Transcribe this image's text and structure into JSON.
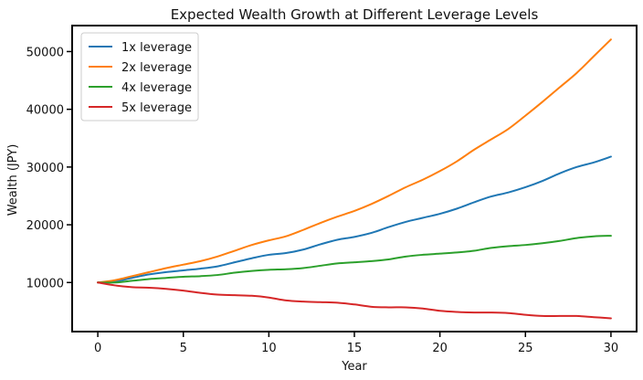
{
  "chart_data": {
    "type": "line",
    "title": "Expected Wealth Growth at Different Leverage Levels",
    "xlabel": "Year",
    "ylabel": "Wealth (JPY)",
    "xlim": [
      -1.5,
      31.5
    ],
    "ylim": [
      1500,
      54500
    ],
    "xticks": [
      0,
      5,
      10,
      15,
      20,
      25,
      30
    ],
    "yticks": [
      10000,
      20000,
      30000,
      40000,
      50000
    ],
    "grid": false,
    "legend_position": "top-left",
    "x": [
      0,
      1,
      2,
      3,
      4,
      5,
      6,
      7,
      8,
      9,
      10,
      11,
      12,
      13,
      14,
      15,
      16,
      17,
      18,
      19,
      20,
      21,
      22,
      23,
      24,
      25,
      26,
      27,
      28,
      29,
      30
    ],
    "series": [
      {
        "name": "1x leverage",
        "color": "#1f77b4",
        "values": [
          10000,
          10200,
          10800,
          11400,
          11800,
          12100,
          12400,
          12800,
          13500,
          14200,
          14800,
          15100,
          15700,
          16600,
          17400,
          17900,
          18600,
          19600,
          20500,
          21200,
          21900,
          22800,
          23900,
          24900,
          25600,
          26500,
          27600,
          28900,
          30000,
          30800,
          31800
        ]
      },
      {
        "name": "2x leverage",
        "color": "#ff7f0e",
        "values": [
          10000,
          10400,
          11100,
          11800,
          12500,
          13100,
          13700,
          14500,
          15500,
          16500,
          17300,
          18000,
          19100,
          20300,
          21400,
          22400,
          23600,
          25000,
          26500,
          27800,
          29300,
          31000,
          33000,
          34800,
          36600,
          38900,
          41300,
          43800,
          46300,
          49200,
          52100
        ]
      },
      {
        "name": "4x leverage",
        "color": "#2ca02c",
        "values": [
          10000,
          10000,
          10300,
          10600,
          10800,
          11000,
          11100,
          11300,
          11700,
          12000,
          12200,
          12300,
          12500,
          12900,
          13300,
          13500,
          13700,
          14000,
          14500,
          14800,
          15000,
          15200,
          15500,
          16000,
          16300,
          16500,
          16800,
          17200,
          17700,
          18000,
          18100
        ]
      },
      {
        "name": "5x leverage",
        "color": "#d62728",
        "values": [
          10000,
          9500,
          9200,
          9100,
          8900,
          8600,
          8200,
          7900,
          7800,
          7700,
          7400,
          6900,
          6700,
          6600,
          6500,
          6200,
          5800,
          5700,
          5700,
          5500,
          5100,
          4900,
          4800,
          4800,
          4700,
          4400,
          4200,
          4200,
          4200,
          4000,
          3800
        ]
      }
    ]
  }
}
